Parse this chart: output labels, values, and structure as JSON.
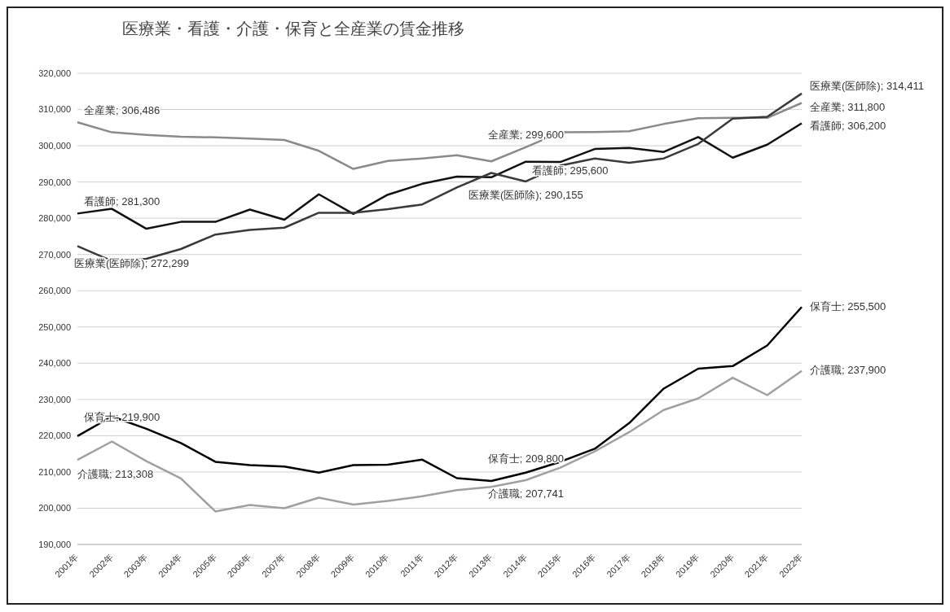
{
  "chart_data": {
    "type": "line",
    "title": "医療業・看護・介護・保育と全産業の賃金推移",
    "categories": [
      "2001年",
      "2002年",
      "2003年",
      "2004年",
      "2005年",
      "2006年",
      "2007年",
      "2008年",
      "2009年",
      "2010年",
      "2011年",
      "2012年",
      "2013年",
      "2014年",
      "2015年",
      "2016年",
      "2017年",
      "2018年",
      "2019年",
      "2020年",
      "2021年",
      "2022年"
    ],
    "ylim": [
      190000,
      320000
    ],
    "yticks": [
      {
        "value": 190000,
        "label": "190,000"
      },
      {
        "value": 200000,
        "label": "200,000"
      },
      {
        "value": 210000,
        "label": "210,000"
      },
      {
        "value": 220000,
        "label": "220,000"
      },
      {
        "value": 230000,
        "label": "230,000"
      },
      {
        "value": 240000,
        "label": "240,000"
      },
      {
        "value": 250000,
        "label": "250,000"
      },
      {
        "value": 260000,
        "label": "260,000"
      },
      {
        "value": 270000,
        "label": "270,000"
      },
      {
        "value": 280000,
        "label": "280,000"
      },
      {
        "value": 290000,
        "label": "290,000"
      },
      {
        "value": 300000,
        "label": "300,000"
      },
      {
        "value": 310000,
        "label": "310,000"
      },
      {
        "value": 320000,
        "label": "320,000"
      }
    ],
    "grid": "y",
    "line_style": "solid",
    "series": [
      {
        "color": "#8a8a8a",
        "values": [
          306486,
          303700,
          303000,
          302500,
          302300,
          302000,
          301600,
          298600,
          293600,
          295800,
          296500,
          297400,
          295700,
          299600,
          303700,
          303800,
          304000,
          306000,
          307600,
          307700,
          307700,
          311800
        ],
        "value_labels": [
          "全産業; 306,486",
          null,
          null,
          null,
          null,
          null,
          null,
          null,
          null,
          null,
          null,
          null,
          null,
          "全産業; 299,600",
          null,
          null,
          null,
          null,
          null,
          null,
          null,
          "全産業; 311,800"
        ]
      },
      {
        "color": "#111111",
        "values": [
          281300,
          282600,
          277100,
          279000,
          279000,
          282400,
          279600,
          286600,
          281200,
          286500,
          289500,
          291500,
          291300,
          295600,
          295500,
          299100,
          299400,
          298300,
          302400,
          296700,
          300300,
          306200
        ],
        "value_labels": [
          "看護師; 281,300",
          null,
          null,
          null,
          null,
          null,
          null,
          null,
          null,
          null,
          null,
          null,
          null,
          "看護師; 295,600",
          null,
          null,
          null,
          null,
          null,
          null,
          null,
          "看護師; 306,200"
        ]
      },
      {
        "color": "#3a3a3a",
        "values": [
          272299,
          268200,
          268800,
          271500,
          275500,
          276800,
          277400,
          281500,
          281500,
          282500,
          283800,
          288500,
          292500,
          290155,
          294500,
          296500,
          295300,
          296500,
          300500,
          307500,
          308000,
          314411
        ],
        "value_labels": [
          "医療業(医師除); 272,299",
          null,
          null,
          null,
          null,
          null,
          null,
          null,
          null,
          null,
          null,
          null,
          null,
          "医療業(医師除); 290,155",
          null,
          null,
          null,
          null,
          null,
          null,
          null,
          "医療業(医師除); 314,411"
        ]
      },
      {
        "color": "#000000",
        "values": [
          219900,
          225300,
          221900,
          218000,
          212800,
          211900,
          211500,
          209800,
          211900,
          212000,
          213400,
          208300,
          207500,
          209800,
          212800,
          216400,
          223500,
          233000,
          238500,
          239200,
          244900,
          255500
        ],
        "value_labels": [
          "保育士; 219,900",
          null,
          null,
          null,
          null,
          null,
          null,
          null,
          null,
          null,
          null,
          null,
          null,
          "保育士; 209,800",
          null,
          null,
          null,
          null,
          null,
          null,
          null,
          "保育士; 255,500"
        ]
      },
      {
        "color": "#a0a0a0",
        "values": [
          213308,
          218400,
          213000,
          208200,
          199100,
          200900,
          200000,
          202900,
          201000,
          202000,
          203300,
          205000,
          205900,
          207741,
          211200,
          215700,
          221000,
          227100,
          230300,
          236000,
          231200,
          237900
        ],
        "value_labels": [
          "介護職; 213,308",
          null,
          null,
          null,
          null,
          null,
          null,
          null,
          null,
          null,
          null,
          null,
          null,
          "介護職; 207,741",
          null,
          null,
          null,
          null,
          null,
          null,
          null,
          "介護職; 237,900"
        ]
      }
    ]
  }
}
